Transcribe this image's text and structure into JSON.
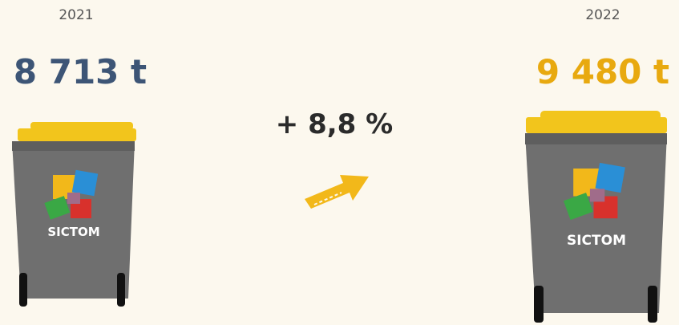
{
  "left": {
    "year": "2021",
    "amount": "8 713 t"
  },
  "change": "+ 8,8 %",
  "right": {
    "year": "2022",
    "amount": "9 480 t"
  },
  "logo": "SICTOM"
}
